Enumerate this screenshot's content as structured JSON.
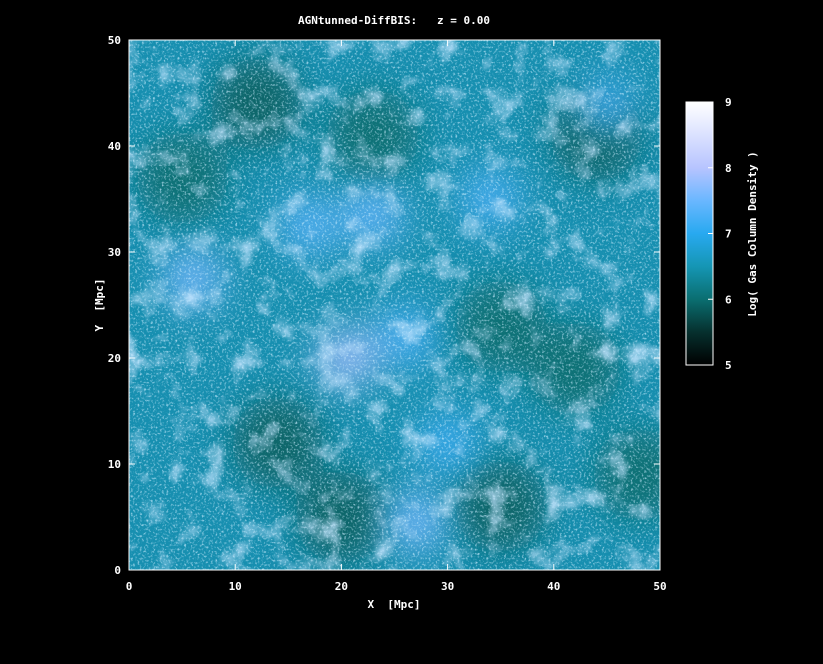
{
  "chart_data": {
    "type": "heatmap",
    "title": "AGNtunned-DiffBIS:   z = 0.00",
    "xlabel": "X  [Mpc]",
    "ylabel": "Y  [Mpc]",
    "xlim": [
      0,
      50
    ],
    "ylim": [
      0,
      50
    ],
    "xticks": [
      0,
      10,
      20,
      30,
      40,
      50
    ],
    "yticks": [
      0,
      10,
      20,
      30,
      40,
      50
    ],
    "grid": false,
    "colorbar": {
      "label": "Log( Gas Column Density )",
      "range": [
        5,
        9
      ],
      "ticks": [
        5,
        6,
        7,
        8,
        9
      ],
      "colormap": [
        {
          "value": 5.0,
          "color": "#000000"
        },
        {
          "value": 5.5,
          "color": "#06302e"
        },
        {
          "value": 6.0,
          "color": "#0a6e70"
        },
        {
          "value": 6.5,
          "color": "#1596b4"
        },
        {
          "value": 7.0,
          "color": "#28a9f0"
        },
        {
          "value": 7.5,
          "color": "#6ab7ff"
        },
        {
          "value": 8.0,
          "color": "#b7c4ff"
        },
        {
          "value": 9.0,
          "color": "#ffffff"
        }
      ]
    },
    "nodes": [
      {
        "x": 20.5,
        "y": 20.0,
        "value": 7.9
      },
      {
        "x": 6.0,
        "y": 27.5,
        "value": 7.6
      },
      {
        "x": 27.0,
        "y": 4.5,
        "value": 7.6
      },
      {
        "x": 17.0,
        "y": 32.5,
        "value": 7.4
      },
      {
        "x": 23.0,
        "y": 33.5,
        "value": 7.5
      },
      {
        "x": 26.0,
        "y": 22.0,
        "value": 7.3
      },
      {
        "x": 34.0,
        "y": 35.0,
        "value": 7.3
      },
      {
        "x": 30.0,
        "y": 12.0,
        "value": 7.2
      },
      {
        "x": 45.0,
        "y": 44.0,
        "value": 7.2
      }
    ],
    "voids": [
      {
        "x": 12.0,
        "y": 44.0,
        "value": 5.9
      },
      {
        "x": 44.0,
        "y": 41.0,
        "value": 5.9
      },
      {
        "x": 5.0,
        "y": 37.0,
        "value": 6.0
      },
      {
        "x": 23.0,
        "y": 41.0,
        "value": 6.0
      },
      {
        "x": 35.0,
        "y": 23.0,
        "value": 6.0
      },
      {
        "x": 42.0,
        "y": 19.0,
        "value": 6.0
      },
      {
        "x": 14.0,
        "y": 12.0,
        "value": 5.9
      },
      {
        "x": 35.0,
        "y": 6.0,
        "value": 5.9
      },
      {
        "x": 48.0,
        "y": 9.0,
        "value": 6.0
      },
      {
        "x": 20.0,
        "y": 5.0,
        "value": 5.9
      }
    ]
  }
}
